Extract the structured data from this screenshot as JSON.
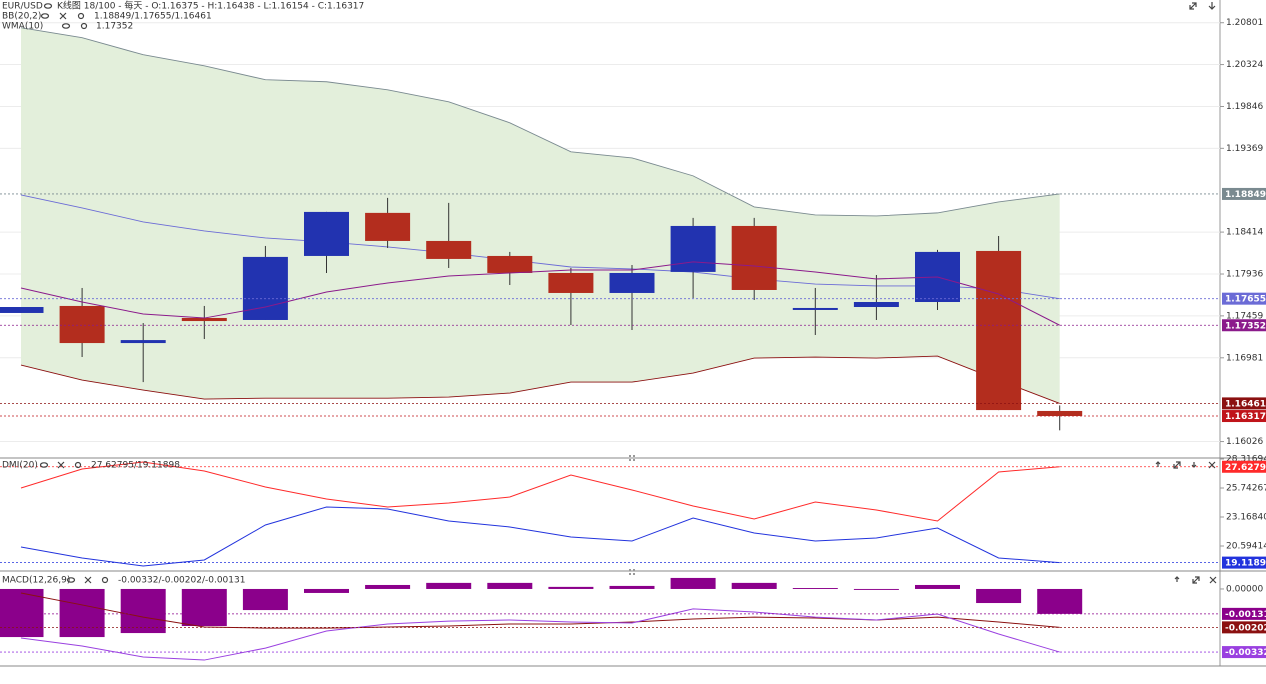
{
  "chart_data": [
    {
      "type": "candlestick",
      "symbol": "EUR/USD",
      "title": "K线图 18/100 - 每天 - O:1.16375 - H:1.16438 - L:1.16154 - C:1.16317",
      "up_color": "#2233b0",
      "down_color": "#b32d1e",
      "open": [
        1.17492,
        1.17572,
        1.17149,
        1.17435,
        1.17412,
        1.18142,
        1.18633,
        1.18313,
        1.18142,
        1.17948,
        1.1772,
        1.1796,
        1.18484,
        1.17537,
        1.1756,
        1.17617,
        1.18199,
        1.16375
      ],
      "high": [
        1.1756,
        1.17777,
        1.17377,
        1.17572,
        1.18256,
        1.18644,
        1.18804,
        1.18747,
        1.18188,
        1.18005,
        1.18039,
        1.18576,
        1.18576,
        1.17777,
        1.17925,
        1.18211,
        1.1837,
        1.16438
      ],
      "low": [
        1.17492,
        1.1699,
        1.16704,
        1.17195,
        1.17412,
        1.17948,
        1.18233,
        1.18005,
        1.17811,
        1.17355,
        1.17298,
        1.17663,
        1.1764,
        1.17241,
        1.17412,
        1.17526,
        1.16385,
        1.16154
      ],
      "close": [
        1.1756,
        1.17149,
        1.17183,
        1.174,
        1.18131,
        1.18644,
        1.18313,
        1.18108,
        1.17948,
        1.1772,
        1.17948,
        1.18484,
        1.17754,
        1.17549,
        1.17617,
        1.18188,
        1.16385,
        1.16317
      ],
      "close_color": "#c0141a",
      "indicators": [
        {
          "name": "BB(20,2)",
          "value_text": "1.18849/1.17655/1.16461",
          "text_color": "#6a5acd",
          "band_color": "#e3efdb",
          "upper": [
            1.20744,
            1.2063,
            1.20436,
            1.2031,
            1.20151,
            1.20128,
            1.20036,
            1.19899,
            1.1966,
            1.19329,
            1.1926,
            1.19055,
            1.18701,
            1.1861,
            1.18598,
            1.18633,
            1.18758,
            1.18849
          ],
          "upper_color": "#7a8a90",
          "middle": [
            1.18838,
            1.1869,
            1.1853,
            1.18427,
            1.18347,
            1.18302,
            1.18245,
            1.18176,
            1.18096,
            1.18016,
            1.17994,
            1.17959,
            1.1788,
            1.17822,
            1.178,
            1.178,
            1.17765,
            1.17655
          ],
          "middle_color": "#6b6bd6",
          "lower": [
            1.16898,
            1.16727,
            1.16613,
            1.1651,
            1.16521,
            1.16521,
            1.16521,
            1.16533,
            1.16579,
            1.16704,
            1.16704,
            1.16807,
            1.16978,
            1.16989,
            1.16978,
            1.17001,
            1.16727,
            1.16461
          ],
          "lower_color": "#8b1010"
        },
        {
          "name": "WMA(10)",
          "value_text": "1.17352",
          "color": "#8b1a8b",
          "values": [
            1.17777,
            1.17617,
            1.1748,
            1.17434,
            1.1756,
            1.17731,
            1.17834,
            1.17914,
            1.17948,
            1.17982,
            1.17982,
            1.18074,
            1.18028,
            1.17959,
            1.1788,
            1.17902,
            1.17708,
            1.17352
          ]
        }
      ],
      "ylim": [
        1.1585,
        1.2106
      ],
      "yticks": [
        1.20801,
        1.20324,
        1.19846,
        1.19369,
        1.18414,
        1.17936,
        1.17459,
        1.16981,
        1.16026
      ],
      "grid": true
    },
    {
      "type": "line",
      "title": "DMI(20)",
      "value_text": "27.62795/19.11898",
      "text_color": "#ff2a2a",
      "series": [
        {
          "color": "#ff2a2a",
          "values": [
            25.742,
            27.429,
            28.051,
            27.252,
            25.831,
            24.766,
            24.056,
            24.411,
            24.944,
            26.897,
            25.565,
            24.145,
            22.991,
            24.5,
            23.79,
            22.813,
            27.163,
            27.62795
          ]
        },
        {
          "color": "#2233dd",
          "values": [
            20.505,
            19.529,
            18.819,
            19.351,
            22.458,
            24.056,
            23.879,
            22.813,
            22.281,
            21.393,
            21.038,
            23.08,
            21.748,
            21.038,
            21.304,
            22.192,
            19.529,
            19.11898
          ]
        }
      ],
      "ylim": [
        18.64,
        28.31694
      ],
      "yticks": [
        28.31694,
        25.74267,
        {
          "value": 23.1684,
          "label": "23.16840"
        },
        20.59414
      ],
      "grid": false
    },
    {
      "type": "macd",
      "title": "MACD(12,26,9)",
      "value_text": "-0.00332/-0.00202/-0.00131",
      "text_color": "#8b008b",
      "histogram": {
        "color": "#8b008b",
        "values": [
          -0.00253,
          -0.00253,
          -0.00232,
          -0.00195,
          -0.00111,
          -0.00021,
          0.00021,
          0.00032,
          0.00032,
          0.00011,
          0.00016,
          0.00058,
          0.00032,
          5e-05,
          -5e-05,
          0.00021,
          -0.00074,
          -0.00131
        ]
      },
      "series": [
        {
          "color": "#8b1010",
          "values": [
            -0.00021,
            -0.00084,
            -0.00148,
            -0.002,
            -0.00206,
            -0.00206,
            -0.002,
            -0.00195,
            -0.00184,
            -0.00184,
            -0.00174,
            -0.00158,
            -0.00148,
            -0.00153,
            -0.00163,
            -0.00148,
            -0.00174,
            -0.00202
          ]
        },
        {
          "color": "#9a40e0",
          "values": [
            -0.00258,
            -0.003,
            -0.00358,
            -0.00374,
            -0.00311,
            -0.00221,
            -0.00184,
            -0.00169,
            -0.00163,
            -0.00174,
            -0.00179,
            -0.00105,
            -0.00121,
            -0.00148,
            -0.00163,
            -0.00132,
            -0.00237,
            -0.00332
          ]
        }
      ],
      "ylim": [
        -0.004,
        0.00084
      ],
      "yticks": [
        {
          "value": 0,
          "label": "0.00000"
        }
      ],
      "grid": false
    }
  ]
}
